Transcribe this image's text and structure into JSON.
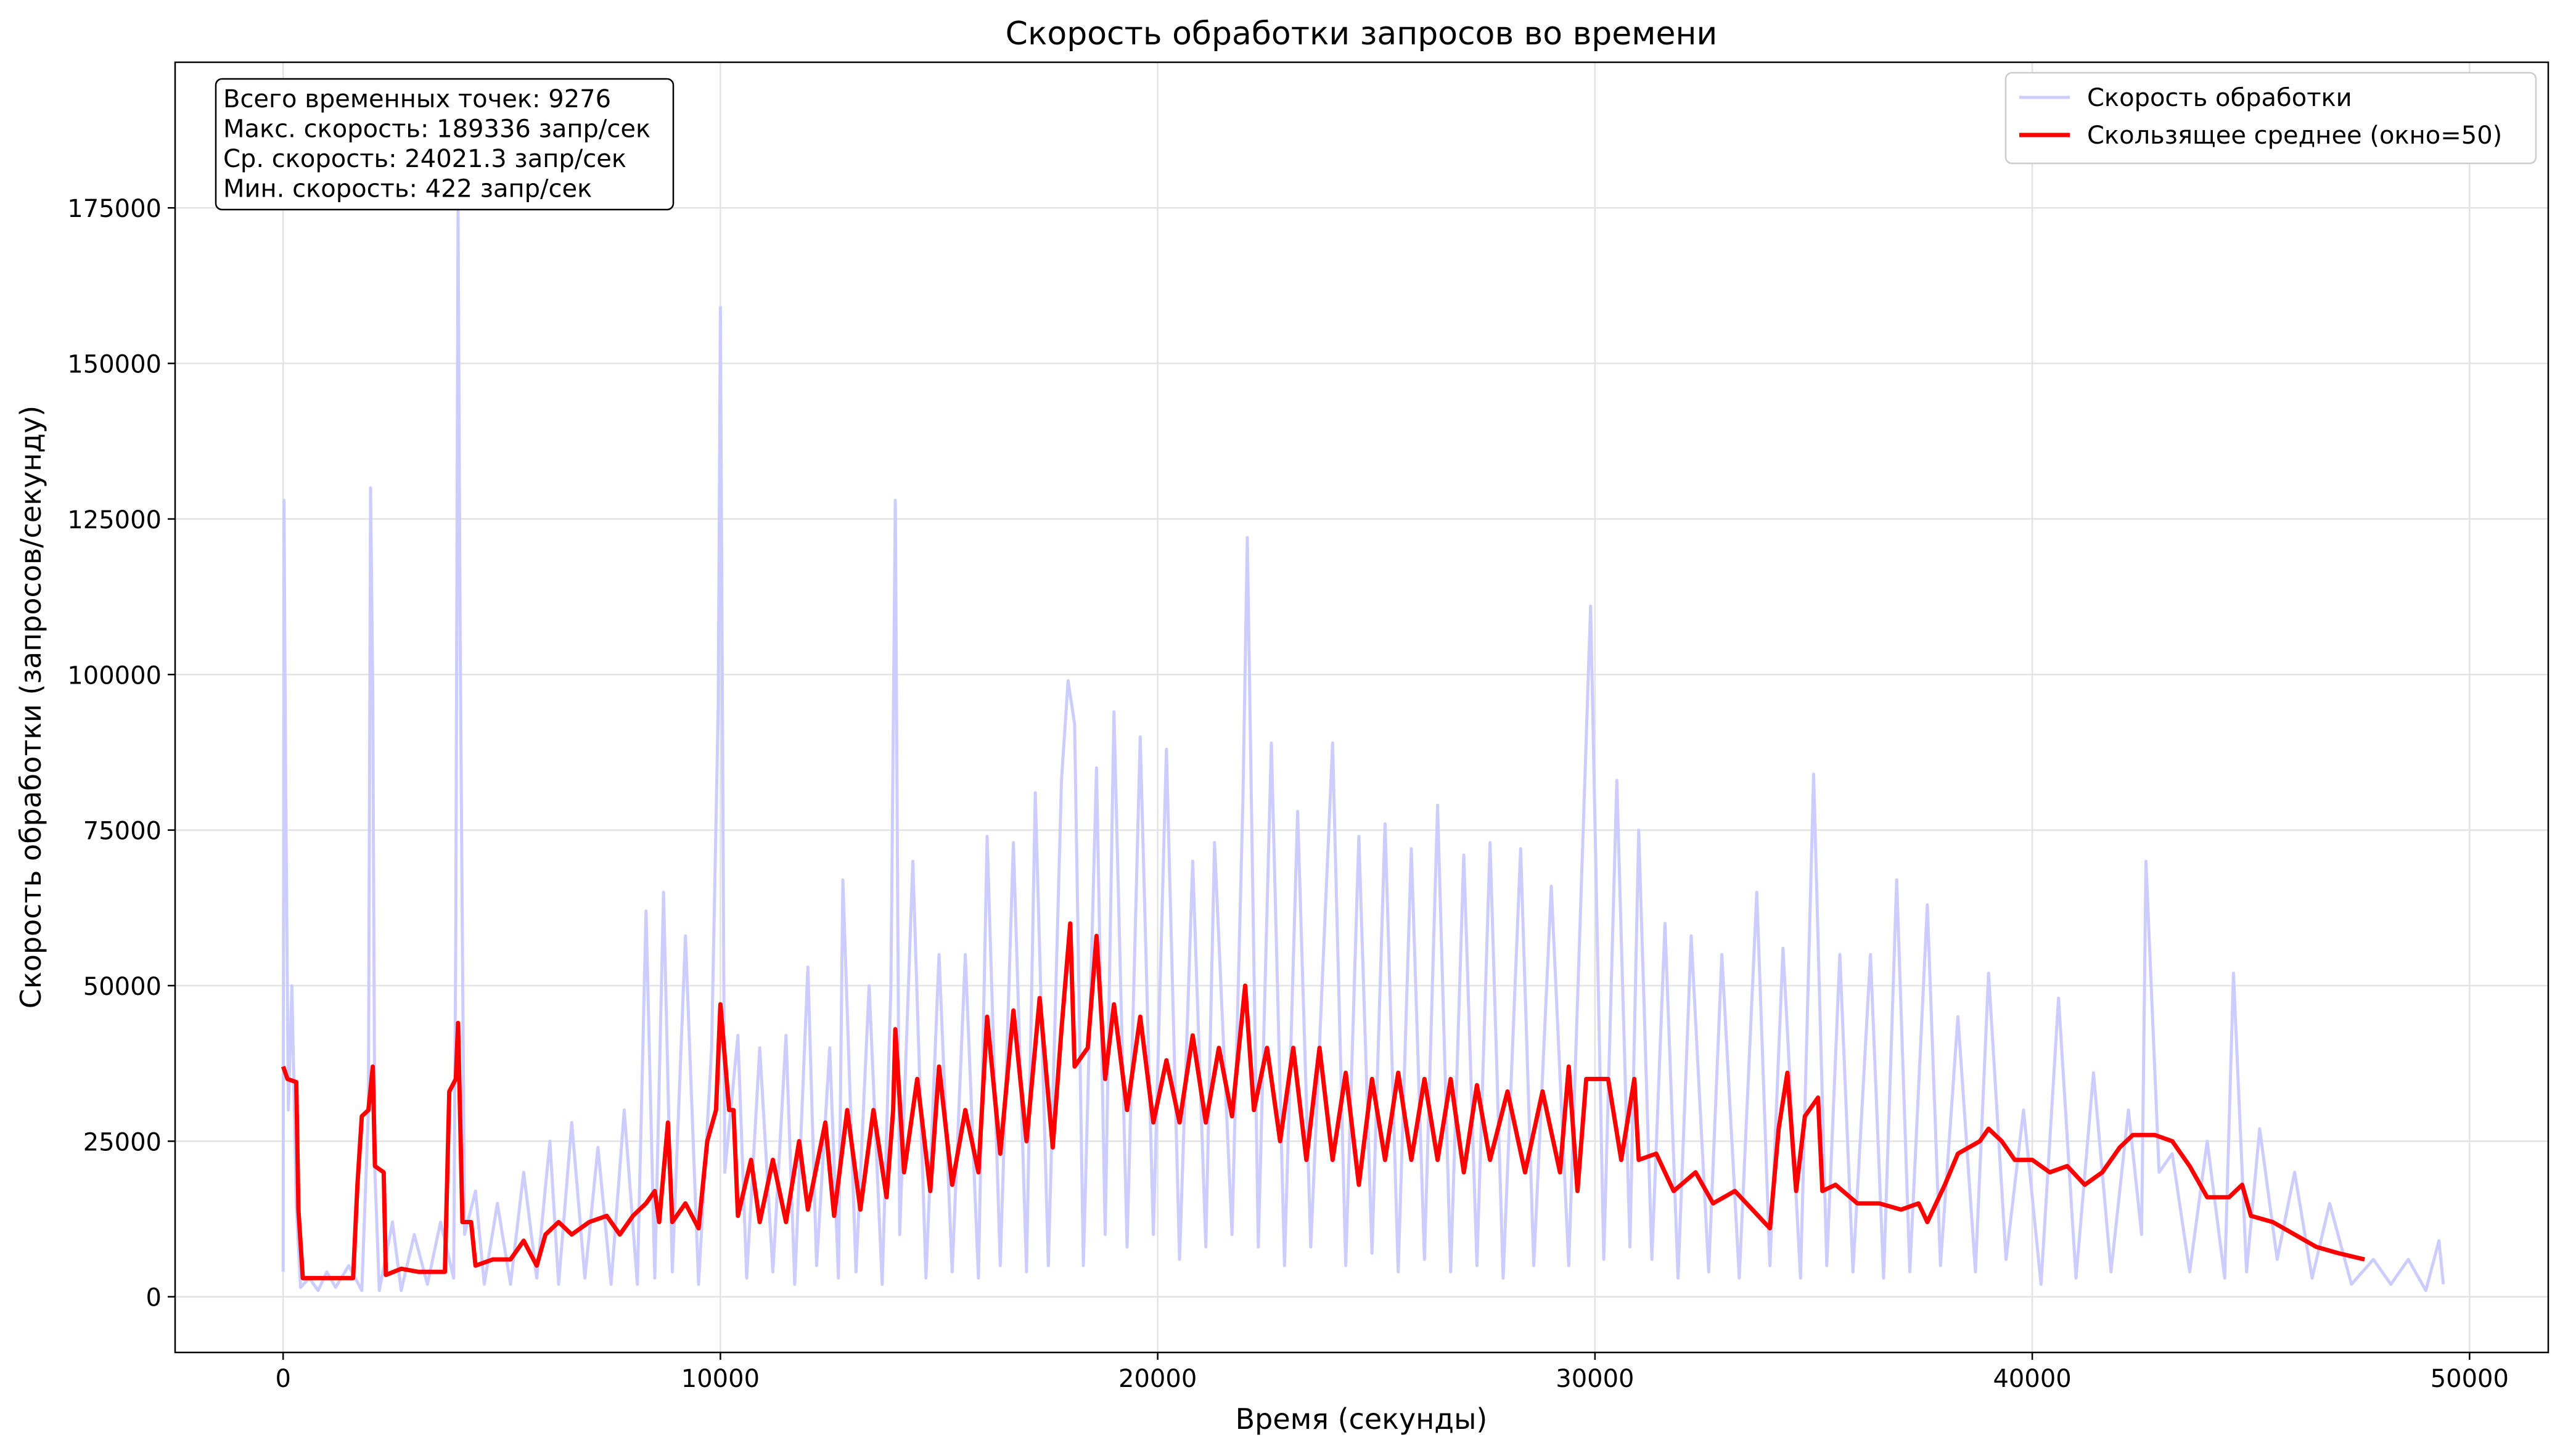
{
  "chart_data": {
    "type": "line",
    "title": "Скорость обработки запросов во времени",
    "xlabel": "Время (секунды)",
    "ylabel": "Скорость обработки (запросов/секунду)",
    "annotation": [
      "Всего временных точек: 9276",
      "Макс. скорость: 189336 запр/сек",
      "Ср. скорость: 24021.3 запр/сек",
      "Мин. скорость: 422 запр/сек"
    ],
    "xlim": [
      -2470,
      51800
    ],
    "ylim": [
      -8950,
      198400
    ],
    "xticks": [
      0,
      10000,
      20000,
      30000,
      40000,
      50000
    ],
    "yticks": [
      0,
      25000,
      50000,
      75000,
      100000,
      125000,
      150000,
      175000
    ],
    "grid": true,
    "legend": "upper right",
    "series": [
      {
        "name": "Скорость обработки",
        "color": "#ccccff",
        "x": [
          0,
          20,
          60,
          120,
          200,
          300,
          400,
          600,
          800,
          1000,
          1200,
          1500,
          1800,
          1950,
          2000,
          2050,
          2100,
          2200,
          2500,
          2700,
          3000,
          3300,
          3600,
          3900,
          3950,
          4000,
          4050,
          4150,
          4400,
          4600,
          4900,
          5200,
          5500,
          5800,
          6100,
          6300,
          6600,
          6900,
          7200,
          7500,
          7800,
          8100,
          8300,
          8500,
          8700,
          8900,
          9200,
          9500,
          9800,
          9950,
          10000,
          10100,
          10400,
          10600,
          10900,
          11200,
          11500,
          11700,
          12000,
          12200,
          12500,
          12700,
          12800,
          13100,
          13400,
          13700,
          13900,
          14000,
          14100,
          14400,
          14700,
          15000,
          15300,
          15600,
          15900,
          16100,
          16400,
          16700,
          17000,
          17200,
          17500,
          17800,
          17950,
          18100,
          18300,
          18600,
          18800,
          19000,
          19300,
          19600,
          19900,
          20200,
          20500,
          20800,
          21100,
          21300,
          21700,
          21950,
          22050,
          22300,
          22600,
          22900,
          23200,
          23500,
          24000,
          24300,
          24600,
          24900,
          25200,
          25500,
          25800,
          26100,
          26400,
          26700,
          27000,
          27300,
          27600,
          27900,
          28300,
          28600,
          29000,
          29400,
          29900,
          30200,
          30500,
          30800,
          31000,
          31300,
          31600,
          31900,
          32200,
          32600,
          32900,
          33300,
          33700,
          34000,
          34300,
          34700,
          35000,
          35300,
          35600,
          35900,
          36300,
          36600,
          36900,
          37200,
          37600,
          37900,
          38300,
          38700,
          39000,
          39400,
          39800,
          40200,
          40600,
          41000,
          41400,
          41800,
          42200,
          42500,
          42600,
          42900,
          43200,
          43600,
          44000,
          44400,
          44600,
          44900,
          45200,
          45600,
          46000,
          46400,
          46800,
          47300,
          47800,
          48200,
          48600,
          49000,
          49300,
          49400
        ],
        "values": [
          4000,
          128000,
          82000,
          30000,
          50000,
          15000,
          1500,
          3000,
          1000,
          4000,
          1500,
          5000,
          1000,
          30000,
          130000,
          97000,
          20000,
          1000,
          12000,
          1000,
          10000,
          2000,
          12000,
          3000,
          60000,
          175000,
          105000,
          10000,
          17000,
          2000,
          15000,
          2000,
          20000,
          3000,
          25000,
          2000,
          28000,
          3000,
          24000,
          2000,
          30000,
          2000,
          62000,
          3000,
          65000,
          4000,
          58000,
          2000,
          40000,
          95000,
          159000,
          20000,
          42000,
          3000,
          40000,
          4000,
          42000,
          2000,
          53000,
          5000,
          40000,
          3000,
          67000,
          4000,
          50000,
          2000,
          50000,
          128000,
          10000,
          70000,
          3000,
          55000,
          4000,
          55000,
          3000,
          74000,
          5000,
          73000,
          4000,
          81000,
          5000,
          83000,
          99000,
          92000,
          5000,
          85000,
          10000,
          94000,
          8000,
          90000,
          10000,
          88000,
          6000,
          70000,
          8000,
          73000,
          10000,
          80000,
          122000,
          8000,
          89000,
          5000,
          78000,
          8000,
          89000,
          5000,
          74000,
          7000,
          76000,
          4000,
          72000,
          6000,
          79000,
          4000,
          71000,
          5000,
          73000,
          3000,
          72000,
          5000,
          66000,
          5000,
          111000,
          6000,
          83000,
          8000,
          75000,
          6000,
          60000,
          3000,
          58000,
          4000,
          55000,
          3000,
          65000,
          5000,
          56000,
          3000,
          84000,
          5000,
          55000,
          4000,
          55000,
          3000,
          67000,
          4000,
          63000,
          5000,
          45000,
          4000,
          52000,
          6000,
          30000,
          2000,
          48000,
          3000,
          36000,
          4000,
          30000,
          10000,
          70000,
          20000,
          23000,
          4000,
          25000,
          3000,
          52000,
          4000,
          27000,
          6000,
          20000,
          3000,
          15000,
          2000,
          6000,
          2000,
          6000,
          1000,
          9000,
          2000
        ]
      },
      {
        "name": "Скользящее среднее (окно=50)",
        "color": "#ff0000",
        "x": [
          0,
          100,
          300,
          350,
          450,
          800,
          1200,
          1600,
          1700,
          1800,
          1950,
          2050,
          2100,
          2300,
          2350,
          2700,
          3100,
          3500,
          3700,
          3800,
          3950,
          4000,
          4100,
          4300,
          4400,
          4800,
          5200,
          5500,
          5800,
          6000,
          6300,
          6600,
          7000,
          7400,
          7700,
          8000,
          8300,
          8500,
          8600,
          8800,
          8900,
          9200,
          9500,
          9700,
          9900,
          10000,
          10200,
          10300,
          10400,
          10700,
          10900,
          11200,
          11500,
          11800,
          12000,
          12400,
          12600,
          12900,
          13200,
          13500,
          13800,
          13950,
          14000,
          14200,
          14500,
          14800,
          15000,
          15300,
          15600,
          15900,
          16100,
          16400,
          16700,
          17000,
          17300,
          17600,
          17800,
          18000,
          18100,
          18400,
          18600,
          18800,
          19000,
          19300,
          19600,
          19900,
          20200,
          20500,
          20800,
          21100,
          21400,
          21700,
          22000,
          22200,
          22500,
          22800,
          23100,
          23400,
          23700,
          24000,
          24300,
          24600,
          24900,
          25200,
          25500,
          25800,
          26100,
          26400,
          26700,
          27000,
          27300,
          27600,
          28000,
          28400,
          28800,
          29200,
          29400,
          29600,
          29800,
          30300,
          30600,
          30900,
          31000,
          31400,
          31800,
          32300,
          32700,
          33200,
          33600,
          34000,
          34200,
          34400,
          34600,
          34800,
          35100,
          35200,
          35500,
          36000,
          36500,
          37000,
          37400,
          37600,
          38000,
          38300,
          38800,
          39000,
          39300,
          39600,
          40000,
          40400,
          40800,
          41200,
          41600,
          42000,
          42300,
          42800,
          43200,
          43600,
          44000,
          44500,
          44800,
          45000,
          45500,
          46000,
          46500,
          47000,
          47600
        ],
        "values": [
          37000,
          35000,
          34500,
          14000,
          3000,
          3000,
          3000,
          3000,
          18000,
          29000,
          30000,
          37000,
          21000,
          20000,
          3500,
          4500,
          4000,
          4000,
          4000,
          33000,
          35000,
          44000,
          12000,
          12000,
          5000,
          6000,
          6000,
          9000,
          5000,
          10000,
          12000,
          10000,
          12000,
          13000,
          10000,
          13000,
          15000,
          17000,
          12000,
          28000,
          12000,
          15000,
          11000,
          25000,
          30000,
          47000,
          30000,
          30000,
          13000,
          22000,
          12000,
          22000,
          12000,
          25000,
          14000,
          28000,
          13000,
          30000,
          14000,
          30000,
          16000,
          30000,
          43000,
          20000,
          35000,
          17000,
          37000,
          18000,
          30000,
          20000,
          45000,
          23000,
          46000,
          25000,
          48000,
          24000,
          43000,
          60000,
          37000,
          40000,
          58000,
          35000,
          47000,
          30000,
          45000,
          28000,
          38000,
          28000,
          42000,
          28000,
          40000,
          29000,
          50000,
          30000,
          40000,
          25000,
          40000,
          22000,
          40000,
          22000,
          36000,
          18000,
          35000,
          22000,
          36000,
          22000,
          35000,
          22000,
          35000,
          20000,
          34000,
          22000,
          33000,
          20000,
          33000,
          20000,
          37000,
          17000,
          35000,
          35000,
          22000,
          35000,
          22000,
          23000,
          17000,
          20000,
          15000,
          17000,
          14000,
          11000,
          27000,
          36000,
          17000,
          29000,
          32000,
          17000,
          18000,
          15000,
          15000,
          14000,
          15000,
          12000,
          18000,
          23000,
          25000,
          27000,
          25000,
          22000,
          22000,
          20000,
          21000,
          18000,
          20000,
          24000,
          26000,
          26000,
          25000,
          21000,
          16000,
          16000,
          18000,
          13000,
          12000,
          10000,
          8000,
          7000,
          6000
        ]
      }
    ]
  }
}
